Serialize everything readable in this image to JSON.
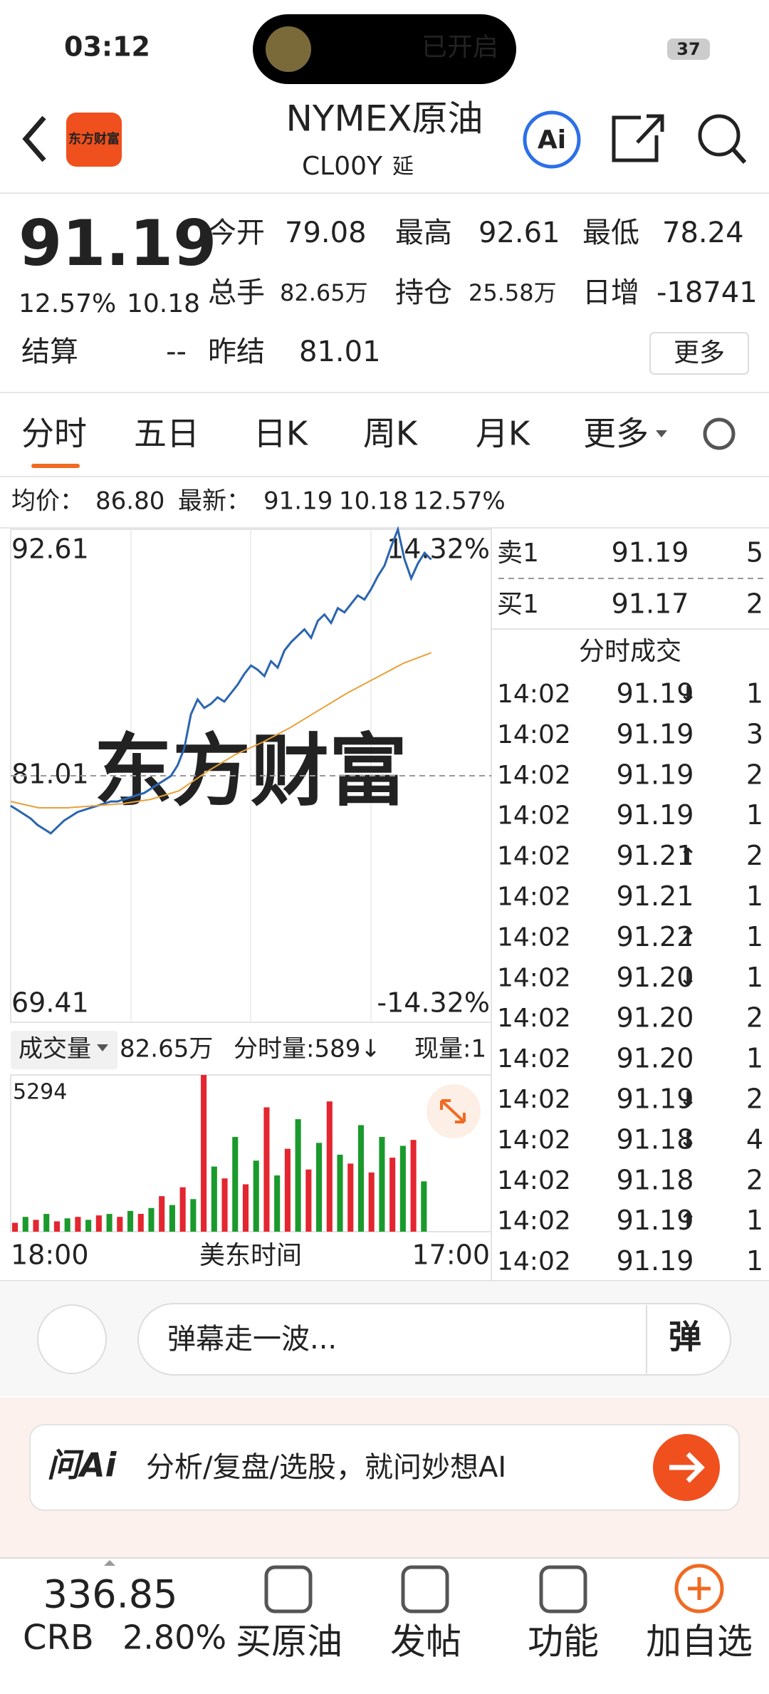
{
  "status": {
    "time": "03:12",
    "island": "已开启",
    "battery": "37"
  },
  "header": {
    "logo": "东方财富",
    "title": "NYMEX原油",
    "code": "CL00Y",
    "tag": "延",
    "ai": "Ai"
  },
  "quote": {
    "price": "91.19",
    "change_pct": "12.57%",
    "change": "10.18",
    "more": "更多",
    "fields": [
      {
        "label": "今开",
        "value": "79.08",
        "color": "green"
      },
      {
        "label": "最高",
        "value": "92.61",
        "color": "red"
      },
      {
        "label": "最低",
        "value": "78.24",
        "color": "green"
      },
      {
        "label": "总手",
        "value": "82.65万"
      },
      {
        "label": "持仓",
        "value": "25.58万"
      },
      {
        "label": "日增",
        "value": "-18741"
      },
      {
        "label": "结算",
        "value": "--"
      },
      {
        "label": "昨结",
        "value": "81.01"
      }
    ]
  },
  "tabs": [
    "分时",
    "五日",
    "日K",
    "周K",
    "月K",
    "更多"
  ],
  "summary": {
    "avg_label": "均价：",
    "avg": "86.80",
    "last_label": "最新：",
    "last": "91.19",
    "change": "10.18",
    "change_pct": "12.57%"
  },
  "chart_data": [
    {
      "type": "line",
      "watermark": "东方财富",
      "ylim": [
        69.41,
        92.61
      ],
      "yticks": [
        69.41,
        81.01,
        92.61
      ],
      "y2lim": [
        {
          "value": -14.32,
          "label": "-14.32%"
        },
        {
          "value": 14.32,
          "label": "14.32%"
        }
      ],
      "series": [
        {
          "color": "#2b65b0",
          "values": [
            79.6,
            79.4,
            79.2,
            79.0,
            78.7,
            78.5,
            78.3,
            78.6,
            78.9,
            79.1,
            79.3,
            79.4,
            79.5,
            79.6,
            79.7,
            79.8,
            79.8,
            79.9,
            80.0,
            80.1,
            80.2,
            80.4,
            80.6,
            80.8,
            81.0,
            81.5,
            82.3,
            83.9,
            84.6,
            84.2,
            84.4,
            84.7,
            84.5,
            84.9,
            85.3,
            85.8,
            86.2,
            86.0,
            85.7,
            86.4,
            86.1,
            86.9,
            87.3,
            87.6,
            87.9,
            87.5,
            88.3,
            88.6,
            88.2,
            88.9,
            88.7,
            89.1,
            89.5,
            89.3,
            89.8,
            90.4,
            90.9,
            91.8,
            92.6,
            91.2,
            90.3,
            91.0,
            91.5,
            91.19
          ]
        },
        {
          "color": "#e8a13a",
          "values": [
            79.8,
            79.5,
            79.5,
            79.6,
            79.7,
            79.9,
            80.3,
            81.2,
            82.0,
            82.6,
            83.3,
            84.1,
            84.9,
            85.6,
            86.3,
            86.8
          ]
        }
      ]
    },
    {
      "type": "bar",
      "title": "成交量",
      "total": "82.65万",
      "period_volume": "分时量:589↓",
      "current_volume": "现量:1",
      "ylim": [
        0,
        5294
      ],
      "yticks": [
        5294
      ],
      "colors": [
        "#e3262f",
        "#1a9a2c"
      ],
      "xlabel": "美东时间",
      "xtick_labels": [
        "18:00",
        "17:00"
      ],
      "values": [
        300,
        500,
        400,
        600,
        350,
        450,
        500,
        400,
        550,
        600,
        500,
        700,
        600,
        800,
        1200,
        900,
        1500,
        1100,
        5294,
        2200,
        1800,
        3200,
        1600,
        2400,
        4200,
        1900,
        2800,
        3800,
        2100,
        3000,
        4400,
        2600,
        2300,
        3600,
        2000,
        3200,
        2500,
        2900,
        3100,
        1700
      ]
    }
  ],
  "order_book": [
    {
      "label": "卖1",
      "price": "91.19",
      "qty": "5"
    },
    {
      "label": "买1",
      "price": "91.17",
      "qty": "2"
    }
  ],
  "trades": {
    "title": "分时成交",
    "rows": [
      {
        "time": "14:02",
        "price": "91.19",
        "dir": "↓",
        "qty": "1"
      },
      {
        "time": "14:02",
        "price": "91.19",
        "qty": "3"
      },
      {
        "time": "14:02",
        "price": "91.19",
        "qty": "2"
      },
      {
        "time": "14:02",
        "price": "91.19",
        "qty": "1"
      },
      {
        "time": "14:02",
        "price": "91.21",
        "dir": "↑",
        "qty": "2"
      },
      {
        "time": "14:02",
        "price": "91.21",
        "qty": "1"
      },
      {
        "time": "14:02",
        "price": "91.22",
        "dir": "↑",
        "qty": "1"
      },
      {
        "time": "14:02",
        "price": "91.20",
        "dir": "↓",
        "qty": "1"
      },
      {
        "time": "14:02",
        "price": "91.20",
        "qty": "2"
      },
      {
        "time": "14:02",
        "price": "91.20",
        "qty": "1"
      },
      {
        "time": "14:02",
        "price": "91.19",
        "dir": "↓",
        "qty": "2"
      },
      {
        "time": "14:02",
        "price": "91.18",
        "dir": "↓",
        "qty": "4"
      },
      {
        "time": "14:02",
        "price": "91.18",
        "qty": "2"
      },
      {
        "time": "14:02",
        "price": "91.19",
        "dir": "↑",
        "qty": "1"
      },
      {
        "time": "14:02",
        "price": "91.19",
        "qty": "1"
      }
    ]
  },
  "comment": {
    "placeholder": "弹幕走一波...",
    "button": "弹"
  },
  "ai_bar": {
    "logo": "问Ai",
    "prompt": "分析/复盘/选股，就问妙想AI"
  },
  "bottom": {
    "index_value": "336.85",
    "index_name": "CRB",
    "index_pct": "2.80%",
    "nav": [
      "买原油",
      "发帖",
      "功能",
      "加自选"
    ]
  }
}
